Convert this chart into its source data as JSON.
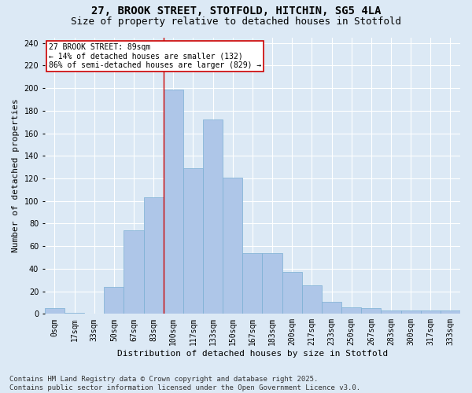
{
  "title1": "27, BROOK STREET, STOTFOLD, HITCHIN, SG5 4LA",
  "title2": "Size of property relative to detached houses in Stotfold",
  "xlabel": "Distribution of detached houses by size in Stotfold",
  "ylabel": "Number of detached properties",
  "categories": [
    "0sqm",
    "17sqm",
    "33sqm",
    "50sqm",
    "67sqm",
    "83sqm",
    "100sqm",
    "117sqm",
    "133sqm",
    "150sqm",
    "167sqm",
    "183sqm",
    "200sqm",
    "217sqm",
    "233sqm",
    "250sqm",
    "267sqm",
    "283sqm",
    "300sqm",
    "317sqm",
    "333sqm"
  ],
  "values": [
    5,
    1,
    0,
    24,
    74,
    103,
    199,
    129,
    172,
    121,
    54,
    54,
    37,
    25,
    11,
    6,
    5,
    3,
    3,
    3,
    3
  ],
  "bar_color": "#aec6e8",
  "bar_edge_color": "#7bafd4",
  "background_color": "#dce9f5",
  "grid_color": "#ffffff",
  "vline_x": 5.5,
  "vline_color": "#cc0000",
  "annotation_text": "27 BROOK STREET: 89sqm\n← 14% of detached houses are smaller (132)\n86% of semi-detached houses are larger (829) →",
  "annotation_box_color": "#ffffff",
  "annotation_box_edge": "#cc0000",
  "ylim": [
    0,
    245
  ],
  "yticks": [
    0,
    20,
    40,
    60,
    80,
    100,
    120,
    140,
    160,
    180,
    200,
    220,
    240
  ],
  "footer": "Contains HM Land Registry data © Crown copyright and database right 2025.\nContains public sector information licensed under the Open Government Licence v3.0.",
  "title_fontsize": 10,
  "subtitle_fontsize": 9,
  "axis_label_fontsize": 8,
  "tick_fontsize": 7,
  "annotation_fontsize": 7,
  "footer_fontsize": 6.5
}
